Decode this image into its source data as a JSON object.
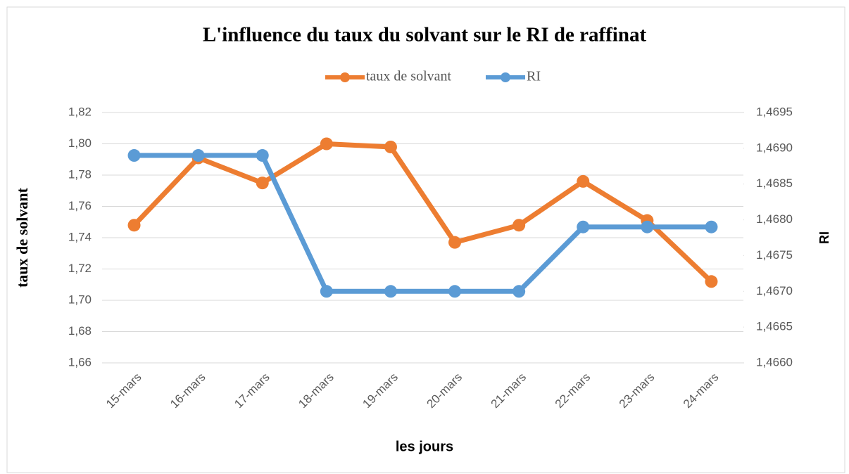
{
  "chart_data": {
    "type": "line",
    "title": "L'influence du taux du solvant sur le RI de raffinat",
    "x_label": "les jours",
    "y_label": "taux de solvant",
    "y2_label": "RI",
    "categories": [
      "15-mars",
      "16-mars",
      "17-mars",
      "18-mars",
      "19-mars",
      "20-mars",
      "21-mars",
      "22-mars",
      "23-mars",
      "24-mars"
    ],
    "series": [
      {
        "name": "taux de solvant",
        "color": "#ed7d31",
        "values": [
          1.748,
          1.791,
          1.775,
          1.8,
          1.798,
          1.737,
          1.748,
          1.776,
          1.751,
          1.712
        ]
      },
      {
        "name": "RI",
        "color": "#5b9bd5",
        "axis": "y2",
        "values": [
          1.4689,
          1.4689,
          1.4689,
          1.467,
          1.467,
          1.467,
          1.467,
          1.4679,
          1.4679,
          1.4679
        ]
      }
    ],
    "ylim": [
      1.66,
      1.82
    ],
    "yticks": [
      {
        "value": 1.66,
        "label": "1,66"
      },
      {
        "value": 1.68,
        "label": "1,68"
      },
      {
        "value": 1.7,
        "label": "1,70"
      },
      {
        "value": 1.72,
        "label": "1,72"
      },
      {
        "value": 1.74,
        "label": "1,74"
      },
      {
        "value": 1.76,
        "label": "1,76"
      },
      {
        "value": 1.78,
        "label": "1,78"
      },
      {
        "value": 1.8,
        "label": "1,80"
      },
      {
        "value": 1.82,
        "label": "1,82"
      }
    ],
    "y2lim": [
      1.466,
      1.4695
    ],
    "y2ticks": [
      {
        "value": 1.466,
        "label": "1,4660"
      },
      {
        "value": 1.4665,
        "label": "1,4665"
      },
      {
        "value": 1.467,
        "label": "1,4670"
      },
      {
        "value": 1.4675,
        "label": "1,4675"
      },
      {
        "value": 1.468,
        "label": "1,4680"
      },
      {
        "value": 1.4685,
        "label": "1,4685"
      },
      {
        "value": 1.469,
        "label": "1,4690"
      },
      {
        "value": 1.4695,
        "label": "1,4695"
      }
    ],
    "grid": true,
    "legend": "top"
  }
}
